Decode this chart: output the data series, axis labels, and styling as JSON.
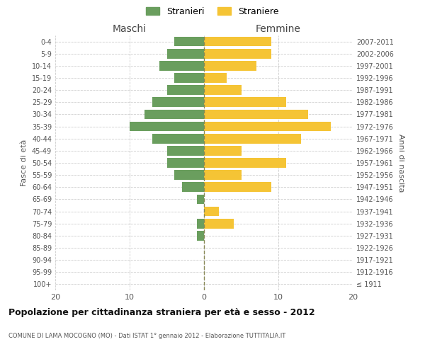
{
  "age_groups": [
    "100+",
    "95-99",
    "90-94",
    "85-89",
    "80-84",
    "75-79",
    "70-74",
    "65-69",
    "60-64",
    "55-59",
    "50-54",
    "45-49",
    "40-44",
    "35-39",
    "30-34",
    "25-29",
    "20-24",
    "15-19",
    "10-14",
    "5-9",
    "0-4"
  ],
  "birth_years": [
    "≤ 1911",
    "1912-1916",
    "1917-1921",
    "1922-1926",
    "1927-1931",
    "1932-1936",
    "1937-1941",
    "1942-1946",
    "1947-1951",
    "1952-1956",
    "1957-1961",
    "1962-1966",
    "1967-1971",
    "1972-1976",
    "1977-1981",
    "1982-1986",
    "1987-1991",
    "1992-1996",
    "1997-2001",
    "2002-2006",
    "2007-2011"
  ],
  "males": [
    0,
    0,
    0,
    0,
    1,
    1,
    0,
    1,
    3,
    4,
    5,
    5,
    7,
    10,
    8,
    7,
    5,
    4,
    6,
    5,
    4
  ],
  "females": [
    0,
    0,
    0,
    0,
    0,
    4,
    2,
    0,
    9,
    5,
    11,
    5,
    13,
    17,
    14,
    11,
    5,
    3,
    7,
    9,
    9
  ],
  "male_color": "#6a9e5e",
  "female_color": "#f5c435",
  "bg_color": "#ffffff",
  "grid_color": "#cccccc",
  "dashed_line_color": "#888855",
  "title": "Popolazione per cittadinanza straniera per età e sesso - 2012",
  "subtitle": "COMUNE DI LAMA MOCOGNO (MO) - Dati ISTAT 1° gennaio 2012 - Elaborazione TUTTITALIA.IT",
  "xlabel_left": "Maschi",
  "xlabel_right": "Femmine",
  "ylabel_left": "Fasce di età",
  "ylabel_right": "Anni di nascita",
  "legend_male": "Stranieri",
  "legend_female": "Straniere",
  "xlim": 20,
  "bar_height": 0.8
}
